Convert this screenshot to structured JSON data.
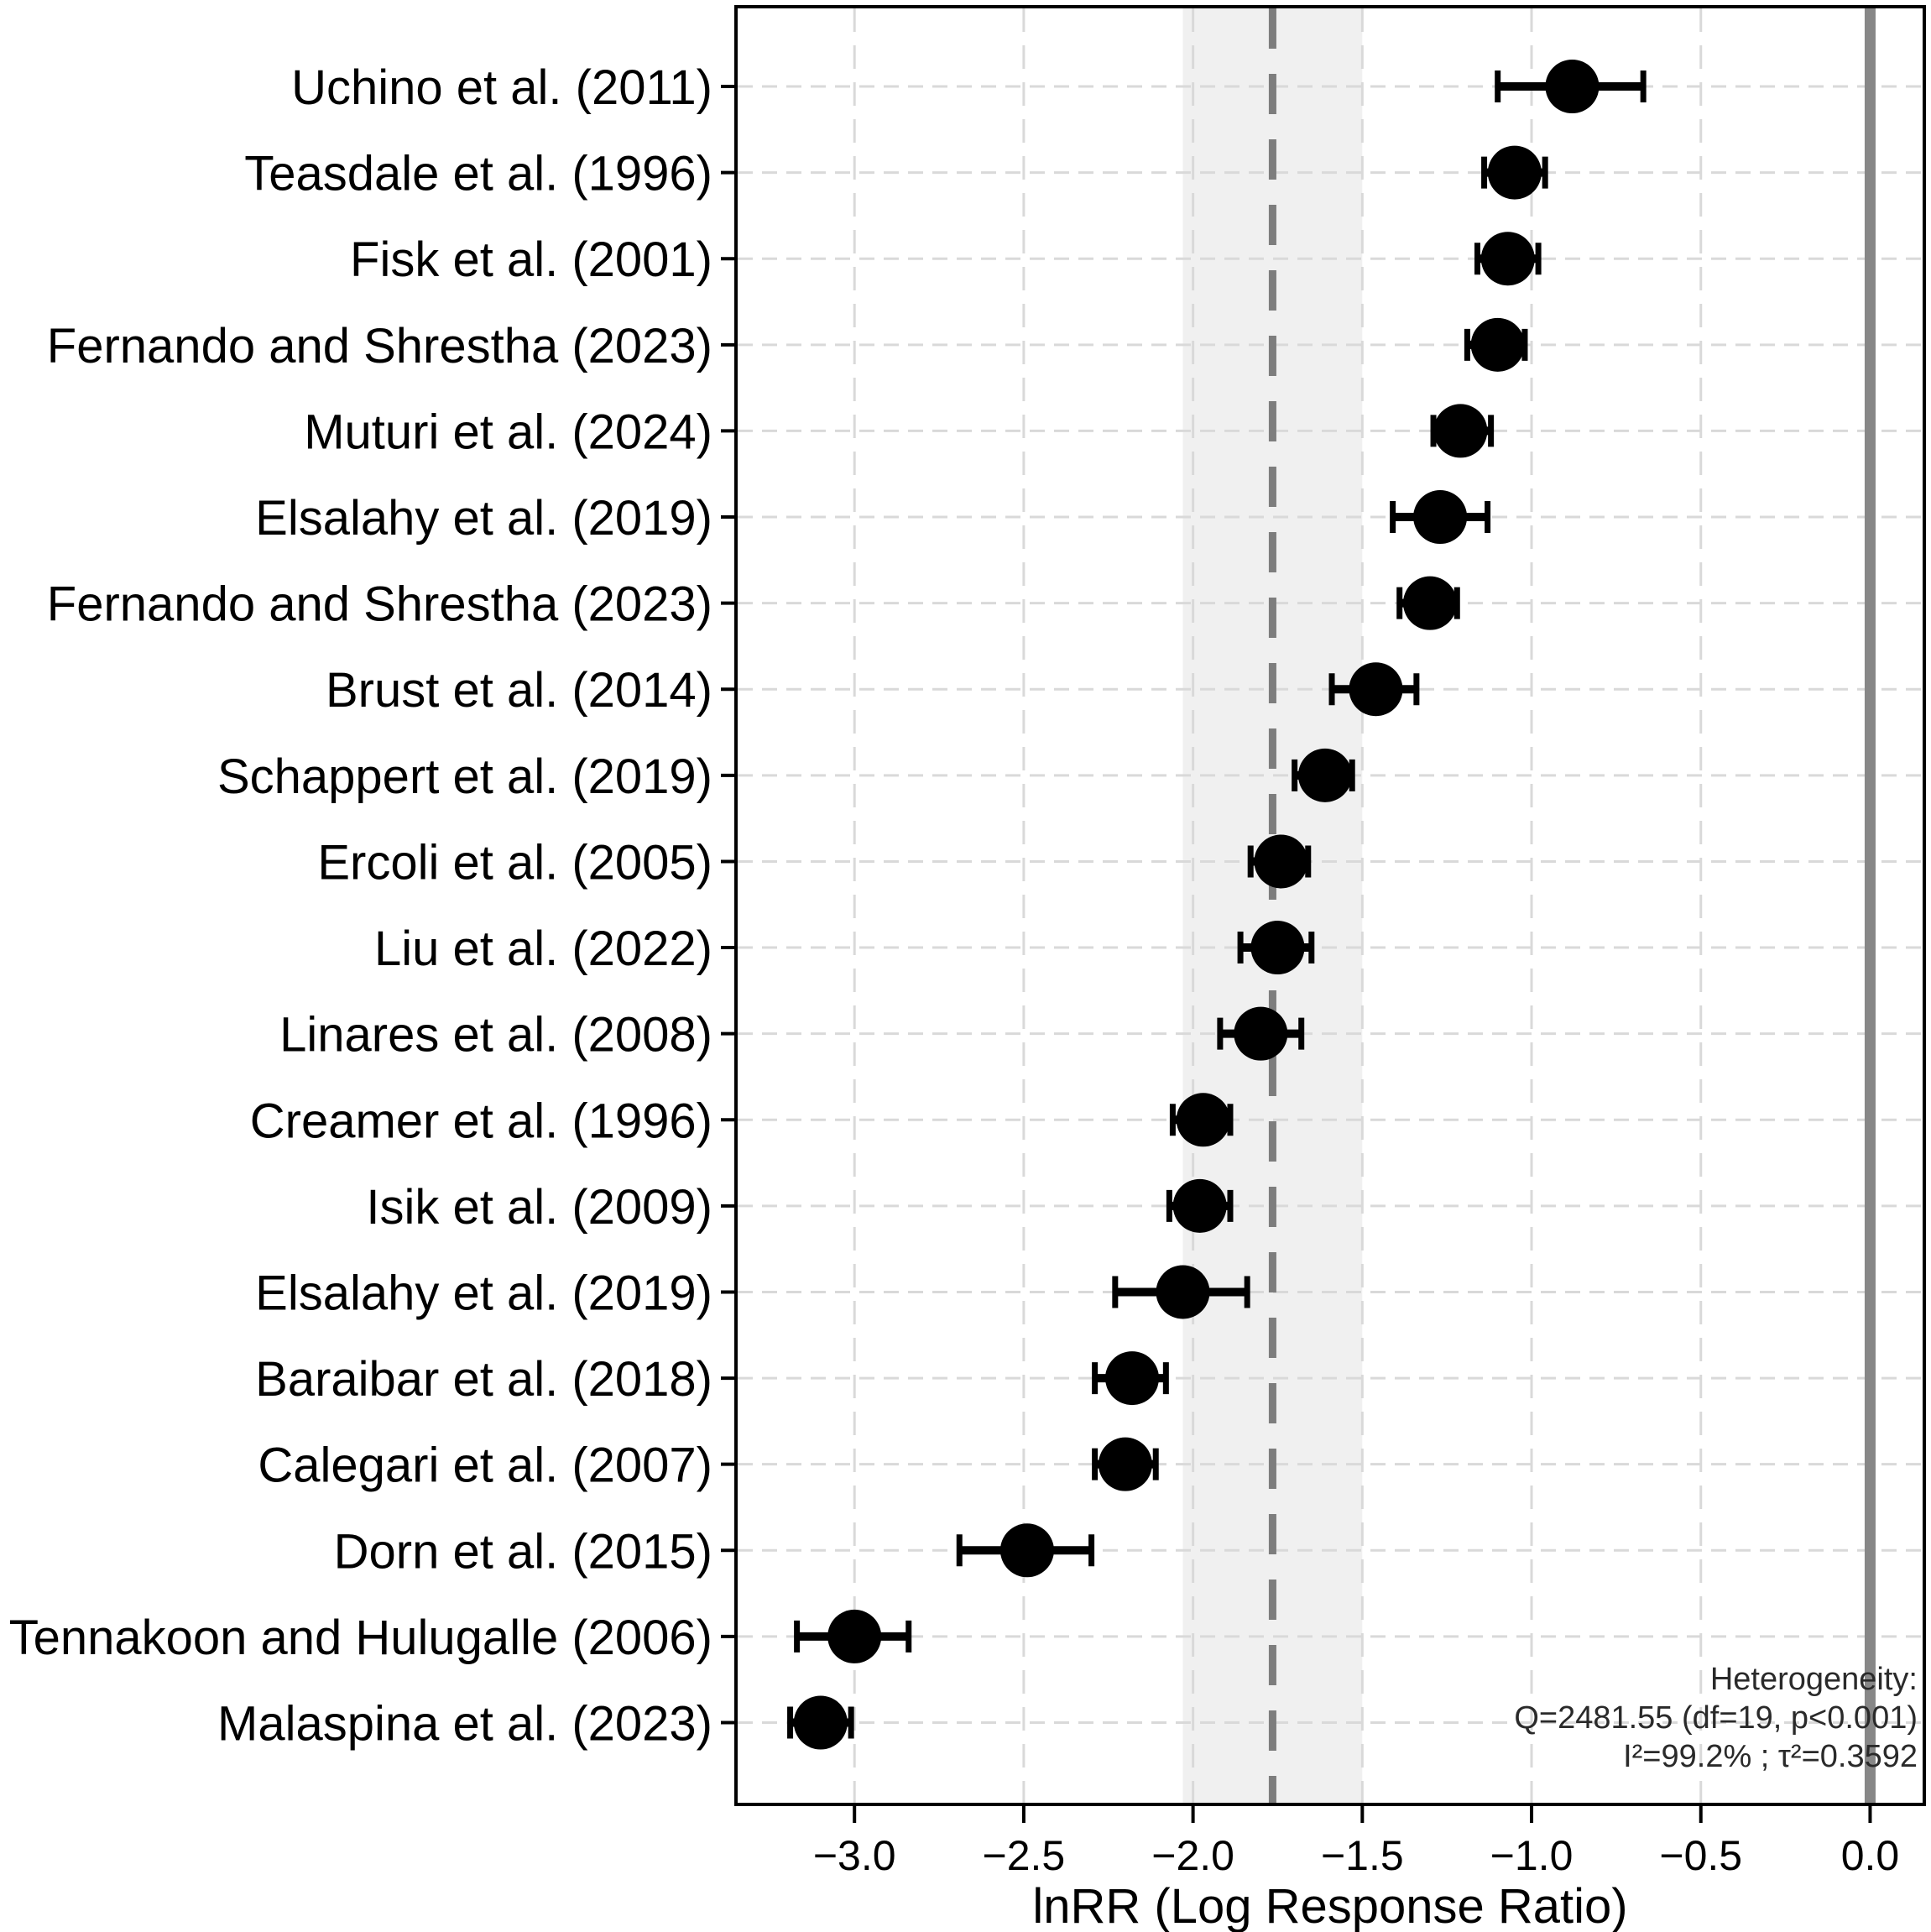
{
  "chart_data": {
    "type": "scatter",
    "variant": "forest-plot",
    "title": "",
    "xlabel": "lnRR (Log Response Ratio)",
    "ylabel": "",
    "xlim": [
      -3.35,
      0.16
    ],
    "grid": true,
    "x_ticks": [
      {
        "v": -3.0,
        "label": "−3.0"
      },
      {
        "v": -2.5,
        "label": "−2.5"
      },
      {
        "v": -2.0,
        "label": "−2.0"
      },
      {
        "v": -1.5,
        "label": "−1.5"
      },
      {
        "v": -1.0,
        "label": "−1.0"
      },
      {
        "v": -0.5,
        "label": "−0.5"
      },
      {
        "v": 0.0,
        "label": "0.0"
      }
    ],
    "studies": [
      {
        "label": "Uchino et al. (2011)",
        "value": -0.88,
        "ci_low": -1.1,
        "ci_high": -0.67
      },
      {
        "label": "Teasdale et al. (1996)",
        "value": -1.05,
        "ci_low": -1.14,
        "ci_high": -0.96
      },
      {
        "label": "Fisk et al. (2001)",
        "value": -1.07,
        "ci_low": -1.16,
        "ci_high": -0.98
      },
      {
        "label": "Fernando and Shrestha (2023)",
        "value": -1.1,
        "ci_low": -1.19,
        "ci_high": -1.02
      },
      {
        "label": "Muturi et al. (2024)",
        "value": -1.21,
        "ci_low": -1.29,
        "ci_high": -1.12
      },
      {
        "label": "Elsalahy et al. (2019)",
        "value": -1.27,
        "ci_low": -1.41,
        "ci_high": -1.13
      },
      {
        "label": "Fernando and Shrestha (2023)",
        "value": -1.3,
        "ci_low": -1.39,
        "ci_high": -1.22
      },
      {
        "label": "Brust et al. (2014)",
        "value": -1.46,
        "ci_low": -1.59,
        "ci_high": -1.34
      },
      {
        "label": "Schappert et al. (2019)",
        "value": -1.61,
        "ci_low": -1.7,
        "ci_high": -1.53
      },
      {
        "label": "Ercoli et al. (2005)",
        "value": -1.74,
        "ci_low": -1.83,
        "ci_high": -1.66
      },
      {
        "label": "Liu et al. (2022)",
        "value": -1.75,
        "ci_low": -1.86,
        "ci_high": -1.65
      },
      {
        "label": "Linares et al. (2008)",
        "value": -1.8,
        "ci_low": -1.92,
        "ci_high": -1.68
      },
      {
        "label": "Creamer et al. (1996)",
        "value": -1.97,
        "ci_low": -2.06,
        "ci_high": -1.89
      },
      {
        "label": "Isik et al. (2009)",
        "value": -1.98,
        "ci_low": -2.07,
        "ci_high": -1.89
      },
      {
        "label": "Elsalahy et al. (2019)",
        "value": -2.03,
        "ci_low": -2.23,
        "ci_high": -1.84
      },
      {
        "label": "Baraibar et al. (2018)",
        "value": -2.18,
        "ci_low": -2.29,
        "ci_high": -2.08
      },
      {
        "label": "Calegari et al. (2007)",
        "value": -2.2,
        "ci_low": -2.29,
        "ci_high": -2.11
      },
      {
        "label": "Dorn et al. (2015)",
        "value": -2.49,
        "ci_low": -2.69,
        "ci_high": -2.3
      },
      {
        "label": "Tennakoon and Hulugalle (2006)",
        "value": -3.0,
        "ci_low": -3.17,
        "ci_high": -2.84
      },
      {
        "label": "Malaspina et al. (2023)",
        "value": -3.1,
        "ci_low": -3.19,
        "ci_high": -3.01
      }
    ],
    "pooled": {
      "estimate": -1.765,
      "ci_low": -2.03,
      "ci_high": -1.5
    },
    "reference_line": 0.0,
    "heterogeneity": [
      "Heterogeneity:",
      "Q=2481.55 (df=19, p<0.001)",
      "I²=99.2% ; τ²=0.3592"
    ],
    "legend": "none",
    "style": {
      "point_color": "#000000",
      "ci_color": "#000000",
      "pooled_line_color": "#7d7d7d",
      "zero_line_color": "#878787",
      "band_fill": "#f0f0f0",
      "grid_color": "#d9d9d9",
      "border_color": "#000000",
      "label_color": "#000000",
      "background": "#ffffff"
    }
  }
}
